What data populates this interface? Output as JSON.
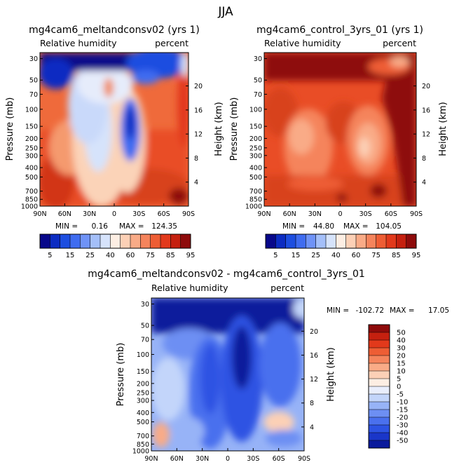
{
  "figure_title": "JJA",
  "chart_data": [
    {
      "type": "heatmap",
      "title": "mg4cam6_meltandconsv02 (yrs 1)",
      "left_label": "Relative humidity",
      "right_label": "percent",
      "ylabel": "Pressure (mb)",
      "ylabel_right": "Height (km)",
      "x_ticks": [
        "90N",
        "60N",
        "30N",
        "0",
        "30S",
        "60S",
        "90S"
      ],
      "y_ticks": [
        "30",
        "50",
        "70",
        "100",
        "150",
        "200",
        "250",
        "300",
        "400",
        "500",
        "700",
        "850",
        "1000"
      ],
      "height_ticks": [
        "20",
        "16",
        "12",
        "8",
        "4"
      ],
      "stats": {
        "min_label": "MIN =",
        "min": "0.16",
        "max_label": "MAX =",
        "max": "124.35"
      },
      "colorbar": {
        "orientation": "horizontal",
        "tick_labels": [
          "5",
          "15",
          "25",
          "40",
          "60",
          "75",
          "85",
          "95"
        ],
        "colors": [
          "#08088a",
          "#0c2cc2",
          "#1d4ee0",
          "#3f6cf0",
          "#6f93f7",
          "#a4bff9",
          "#d6e3fb",
          "#fdeee3",
          "#fcd0b6",
          "#f9ab87",
          "#f5845c",
          "#ee5d34",
          "#e2391b",
          "#c5200f",
          "#8e0b0b"
        ]
      }
    },
    {
      "type": "heatmap",
      "title": "mg4cam6_control_3yrs_01 (yrs 1)",
      "left_label": "Relative humidity",
      "right_label": "percent",
      "ylabel": "Pressure (mb)",
      "ylabel_right": "Height (km)",
      "x_ticks": [
        "90N",
        "60N",
        "30N",
        "0",
        "30S",
        "60S",
        "90S"
      ],
      "y_ticks": [
        "30",
        "50",
        "70",
        "100",
        "150",
        "200",
        "250",
        "300",
        "400",
        "500",
        "700",
        "850",
        "1000"
      ],
      "height_ticks": [
        "20",
        "16",
        "12",
        "8",
        "4"
      ],
      "stats": {
        "min_label": "MIN =",
        "min": "44.80",
        "max_label": "MAX =",
        "max": "104.05"
      },
      "colorbar": {
        "orientation": "horizontal",
        "tick_labels": [
          "5",
          "15",
          "25",
          "40",
          "60",
          "75",
          "85",
          "95"
        ],
        "colors": [
          "#08088a",
          "#0c2cc2",
          "#1d4ee0",
          "#3f6cf0",
          "#6f93f7",
          "#a4bff9",
          "#d6e3fb",
          "#fdeee3",
          "#fcd0b6",
          "#f9ab87",
          "#f5845c",
          "#ee5d34",
          "#e2391b",
          "#c5200f",
          "#8e0b0b"
        ]
      }
    },
    {
      "type": "heatmap",
      "title": "mg4cam6_meltandconsv02 - mg4cam6_control_3yrs_01",
      "left_label": "Relative humidity",
      "right_label": "percent",
      "ylabel": "Pressure (mb)",
      "ylabel_right": "Height (km)",
      "x_ticks": [
        "90N",
        "60N",
        "30N",
        "0",
        "30S",
        "60S",
        "90S"
      ],
      "y_ticks": [
        "30",
        "50",
        "70",
        "100",
        "150",
        "200",
        "250",
        "300",
        "400",
        "500",
        "700",
        "850",
        "1000"
      ],
      "height_ticks": [
        "20",
        "16",
        "12",
        "8",
        "4"
      ],
      "stats": {
        "min_label": "MIN =",
        "min": "-102.72",
        "max_label": "MAX =",
        "max": "17.05"
      },
      "colorbar": {
        "orientation": "vertical",
        "tick_labels": [
          "50",
          "40",
          "30",
          "20",
          "15",
          "10",
          "5",
          "0",
          "-5",
          "-10",
          "-15",
          "-20",
          "-30",
          "-40",
          "-50"
        ],
        "colors": [
          "#8e0b0b",
          "#c5200f",
          "#e2391b",
          "#ee5d34",
          "#f5845c",
          "#f9ab87",
          "#fcd0b6",
          "#fdeee3",
          "#e9eefc",
          "#c3d5fa",
          "#97b3f7",
          "#6d8ff3",
          "#4a70ee",
          "#2d53e3",
          "#1a36c9",
          "#0a1a9c"
        ]
      }
    }
  ]
}
